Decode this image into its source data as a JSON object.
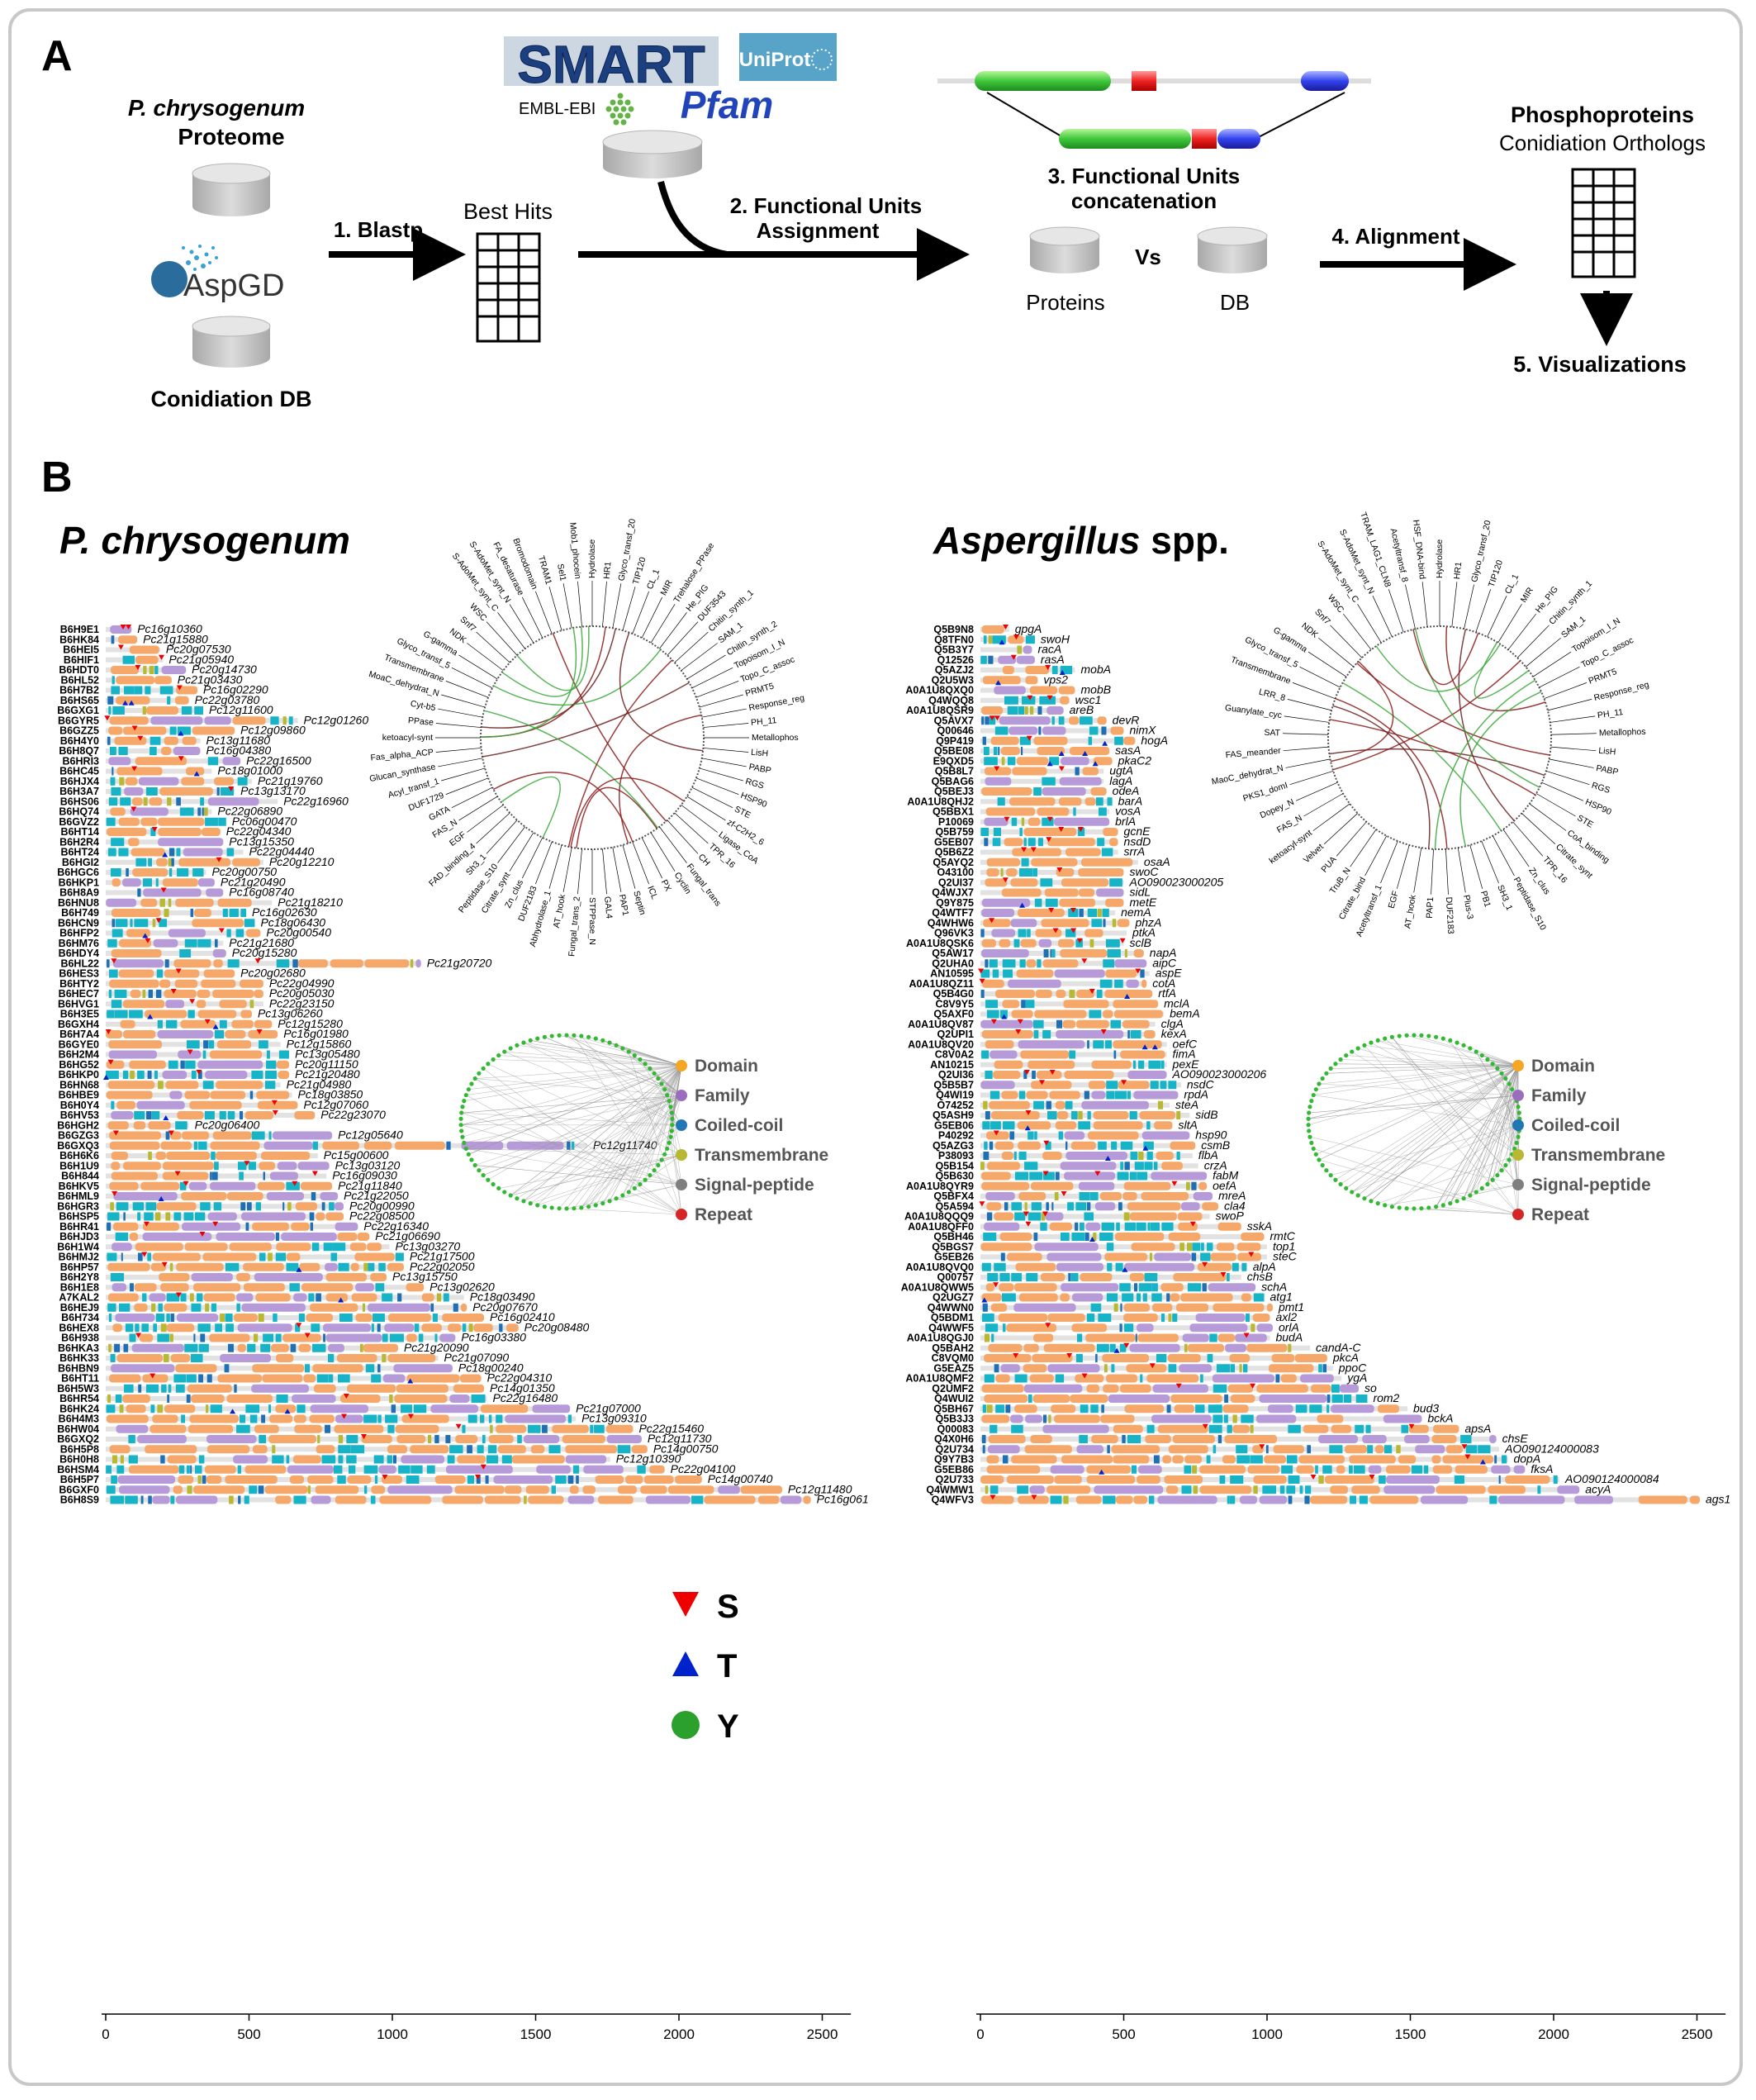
{
  "panel_a": {
    "letter": "A",
    "species": "P. chrysogenum",
    "proteome": "Proteome",
    "aspgd": "AspGD",
    "conidiation_db": "Conidiation DB",
    "step1": "1. Blastp",
    "best_hits": "Best Hits",
    "smart": "SMART",
    "uniprot": "UniProt",
    "embl": "EMBL-EBI",
    "pfam": "Pfam",
    "step2_line1": "2. Functional Units",
    "step2_line2": "Assignment",
    "step3_line1": "3. Functional Units",
    "step3_line2": "concatenation",
    "proteins": "Proteins",
    "vs": "Vs",
    "db": "DB",
    "step4": "4. Alignment",
    "phospho": "Phosphoproteins",
    "cond_orth": "Conidiation Orthologs",
    "step5": "5. Visualizations"
  },
  "panel_b": {
    "letter": "B",
    "left_title": "P. chrysogenum",
    "right_title_italic": "Aspergillus",
    "right_title_rest": " spp.",
    "left_ids": [
      "B6H9E1",
      "B6HK84",
      "B6HEI5",
      "B6HIF1",
      "B6HDT0",
      "B6HL52",
      "B6H7B2",
      "B6HS65",
      "B6GXG1",
      "B6GYR5",
      "B6GZZ5",
      "B6H4Y0",
      "B6H8Q7",
      "B6HRI3",
      "B6HC45",
      "B6HJX4",
      "B6H3A7",
      "B6HS06",
      "B6HQ74",
      "B6GVZ2",
      "B6HT14",
      "B6H2R4",
      "B6HT24",
      "B6HGI2",
      "B6HGC6",
      "B6HKP1",
      "B6H8A9",
      "B6HNU8",
      "B6H749",
      "B6HCN9",
      "B6HFP2",
      "B6HM76",
      "B6HDY4",
      "B6HL22",
      "B6HES3",
      "B6HTY2",
      "B6HEC7",
      "B6HVG1",
      "B6H3E5",
      "B6GXH4",
      "B6H7A4",
      "B6GYE0",
      "B6H2M4",
      "B6HG52",
      "B6HKP0",
      "B6HN68",
      "B6HBE9",
      "B6H0Y4",
      "B6HV53",
      "B6HGH2",
      "B6GZG3",
      "B6GXQ3",
      "B6H6K6",
      "B6H1U9",
      "B6H844",
      "B6HKV5",
      "B6HML9",
      "B6HGR3",
      "B6HSP5",
      "B6HR41",
      "B6HJD3",
      "B6H1W4",
      "B6HMJ2",
      "B6HP57",
      "B6H2Y8",
      "B6H1E8",
      "A7KAL2",
      "B6HEJ9",
      "B6H734",
      "B6HEX8",
      "B6H938",
      "B6HKA3",
      "B6HK33",
      "B6HBN9",
      "B6HT11",
      "B6H5W3",
      "B6HR54",
      "B6HK24",
      "B6H4M3",
      "B6HW04",
      "B6GXQ2",
      "B6H5P8",
      "B6H0H8",
      "B6HSM4",
      "B6H5P7",
      "B6GXF0",
      "B6H8S9"
    ],
    "left_genes": [
      "Pc16g10360",
      "Pc21g15880",
      "Pc20g07530",
      "Pc21g05940",
      "Pc20g14730",
      "Pc21g03430",
      "Pc16g02290",
      "Pc22g03780",
      "Pc12g11600",
      "Pc12g01260",
      "Pc12g09860",
      "Pc13g11680",
      "Pc16g04380",
      "Pc22g16500",
      "Pc18g01000",
      "Pc21g19760",
      "Pc13g13170",
      "Pc22g16960",
      "Pc22g06890",
      "Pc06g00470",
      "Pc22g04340",
      "Pc13g15350",
      "Pc22g04440",
      "Pc20g12210",
      "Pc20g00750",
      "Pc21g20490",
      "Pc16g08740",
      "Pc21g18210",
      "Pc16g02630",
      "Pc18g06430",
      "Pc20g00540",
      "Pc21g21680",
      "Pc20g15280",
      "Pc21g20720",
      "Pc20g02680",
      "Pc22g04990",
      "Pc20g05030",
      "Pc22g23150",
      "Pc13g06260",
      "Pc12g15280",
      "Pc16g01980",
      "Pc12g15860",
      "Pc13g05480",
      "Pc20g11150",
      "Pc21g20480",
      "Pc21g04980",
      "Pc18g03850",
      "Pc12g07060",
      "Pc22g23070",
      "Pc20g06400",
      "Pc12g05640",
      "Pc12g11740",
      "Pc15g00600",
      "Pc13g03120",
      "Pc16g09030",
      "Pc21g11840",
      "Pc21g22050",
      "Pc20g00990",
      "Pc22g08500",
      "Pc22g16340",
      "Pc21g06690",
      "Pc13g03270",
      "Pc21g17500",
      "Pc22g02050",
      "Pc13g15750",
      "Pc13g02620",
      "Pc18g03490",
      "Pc20g07670",
      "Pc16g02410",
      "Pc20g08480",
      "Pc16g03380",
      "Pc21g20090",
      "Pc21g07090",
      "Pc18g00240",
      "Pc22g04310",
      "Pc14g01350",
      "Pc22g16480",
      "Pc21g07000",
      "Pc13g09310",
      "Pc22g15460",
      "Pc12g11730",
      "Pc14g00750",
      "Pc12g10390",
      "Pc22g04100",
      "Pc14g00740",
      "Pc12g11480",
      "Pc16g061"
    ],
    "right_ids": [
      "Q5B9N8",
      "Q8TFN0",
      "Q5B3Y7",
      "Q12526",
      "Q5AZJ2",
      "Q2U5W3",
      "A0A1U8QXQ0",
      "Q4WQQ8",
      "A0A1U8QSR9",
      "Q5AVX7",
      "Q00646",
      "Q9P419",
      "Q5BE08",
      "E9QXD5",
      "Q5B8L7",
      "Q5BAG6",
      "Q5BEJ3",
      "A0A1U8QHJ2",
      "Q5BBX1",
      "P10069",
      "Q5B759",
      "G5EB07",
      "Q5B6Z2",
      "Q5AYQ2",
      "O43100",
      "Q2UI37",
      "Q4WJX7",
      "Q9Y875",
      "Q4WTF7",
      "Q4WHW6",
      "Q96VK3",
      "A0A1U8QSK6",
      "Q5AW17",
      "Q2UHA0",
      "AN10595",
      "A0A1U8QZ11",
      "Q5B4G0",
      "C8V9Y5",
      "Q5AXF0",
      "A0A1U8QV87",
      "Q2UPI1",
      "A0A1U8QV20",
      "C8V0A2",
      "AN10215",
      "Q2UI36",
      "Q5B5B7",
      "Q4WI19",
      "O74252",
      "Q5ASH9",
      "G5EB06",
      "P40292",
      "Q5AZG3",
      "P38093",
      "Q5B154",
      "Q5B630",
      "A0A1U8QYR9",
      "Q5BFX4",
      "Q5A594",
      "A0A1U8QQQ9",
      "A0A1U8QFF0",
      "Q5BH46",
      "Q5BGS7",
      "G5EB26",
      "A0A1U8QVQ0",
      "Q00757",
      "A0A1U8QWW5",
      "Q2UGZ7",
      "Q4WWN0",
      "Q5BDM1",
      "Q4WWF5",
      "A0A1U8QGJ0",
      "Q5BAH2",
      "C8VQM0",
      "G5EAZ5",
      "A0A1U8QMF2",
      "Q2UMF2",
      "Q4WUI2",
      "Q5BH67",
      "Q5B3J3",
      "Q00083",
      "Q4X0H6",
      "Q2U734",
      "Q9Y7B3",
      "G5EB86",
      "Q2U733",
      "Q4WMW1",
      "Q4WFV3"
    ],
    "right_genes": [
      "gpgA",
      "swoH",
      "racA",
      "rasA",
      "mobA",
      "vps2",
      "mobB",
      "wsc1",
      "areB",
      "devR",
      "nimX",
      "hogA",
      "sasA",
      "pkaC2",
      "ugtA",
      "lagA",
      "odeA",
      "barA",
      "vosA",
      "brlA",
      "gcnE",
      "nsdD",
      "srrA",
      "osaA",
      "swoC",
      "AO090023000205",
      "sidL",
      "metE",
      "nemA",
      "phzA",
      "ptkA",
      "sclB",
      "napA",
      "aipC",
      "aspE",
      "cotA",
      "rtfA",
      "mclA",
      "bemA",
      "clgA",
      "kexA",
      "oefC",
      "fimA",
      "pexE",
      "AO090023000206",
      "nsdC",
      "rpdA",
      "steA",
      "sidB",
      "sltA",
      "hsp90",
      "csmB",
      "flbA",
      "crzA",
      "fabM",
      "oefA",
      "mreA",
      "cla4",
      "swoP",
      "sskA",
      "rmtC",
      "top1",
      "steC",
      "alpA",
      "chsB",
      "schA",
      "atg1",
      "pmt1",
      "axl2",
      "orlA",
      "budA",
      "candA-C",
      "pkcA",
      "ppoC",
      "ygA",
      "so",
      "rom2",
      "bud3",
      "bckA",
      "apsA",
      "chsE",
      "AO090124000083",
      "dopA",
      "fksA",
      "AO090124000084",
      "acyA",
      "ags1"
    ],
    "x_ticks": [
      "0",
      "500",
      "1000",
      "1500",
      "2000",
      "2500"
    ],
    "left_circos_labels": [
      "Hydrolase",
      "HR1",
      "Glyco_transf_20",
      "TIP120",
      "CL_1",
      "MIR",
      "Trehalose_PPase",
      "He_PIG",
      "DUF3543",
      "Chitin_synth_1",
      "SAM_1",
      "Chitin_synth_2",
      "Topoisom_I_N",
      "Topo_C_assoc",
      "PRMT5",
      "Response_reg",
      "PH_11",
      "Metallophos",
      "LisH",
      "PABP",
      "RGS",
      "HSP90",
      "STE",
      "zf-C2H2_6",
      "Ligase_CoA",
      "TPR_16",
      "CH",
      "Fungal_trans",
      "Cyclin",
      "PX",
      "ICL",
      "Septin",
      "PAP1",
      "GAL4",
      "STPPase_N",
      "Fungal_trans_2",
      "AT_hook",
      "Abhydrolase_1",
      "DUF2183",
      "Zn_clus",
      "Citrate_synt",
      "Peptidase_S10",
      "Sh3_1",
      "FAD_binding_4",
      "EGF",
      "FAS_N",
      "GATA",
      "DUF1729",
      "Acyl_transf_1",
      "Glucan_synthase",
      "Fas_alpha_ACP",
      "ketoacyl-synt",
      "PPase",
      "Cyt-b5",
      "MoaC_dehydrat_N",
      "Transmembrane",
      "Glyco_transf_5",
      "G-gamma",
      "NDK",
      "Snf7",
      "WSC",
      "S-AdoMet_synt_C",
      "S-AdoMet_synt_N",
      "FA_desaturase",
      "Bromodomain",
      "TRAM1",
      "Sel1",
      "Mob1_phocein"
    ],
    "right_circos_labels": [
      "Hydrolase",
      "HR1",
      "Glyco_transf_20",
      "TIP120",
      "CL_1",
      "MIR",
      "He_PIG",
      "Chitin_synth_1",
      "SAM_1",
      "Topoisom_I_N",
      "Topo_C_assoc",
      "PRMT5",
      "Response_reg",
      "PH_11",
      "Metallophos",
      "LisH",
      "PABP",
      "RGS",
      "HSP90",
      "STE",
      "CoA_binding",
      "Citrate_synt",
      "TPR_16",
      "Zn_clus",
      "Peptidase_S10",
      "SH3_1",
      "PB1",
      "Plus-3",
      "DUF2183",
      "PAP1",
      "AT_hook",
      "EGF",
      "Acetyltransf_1",
      "Citrate_bind",
      "TruB_N",
      "PUA",
      "Velvet",
      "ketoacyl-synt",
      "FAS_N",
      "Dopey_N",
      "PKS1_domI",
      "MaoC_dehydrat_N",
      "FAS_meander",
      "SAT",
      "Guanylate_cyc",
      "LRR_8",
      "Transmembrane",
      "Glyco_transf_5",
      "G-gamma",
      "NDK",
      "Snf7",
      "WSC",
      "S-AdoMet_synt_C",
      "S-AdoMet_synt_N",
      "TRAM_LAG1_CLN8",
      "Acetyltransf_8",
      "HSF_DNA-bind"
    ],
    "legend_labels": [
      "Domain",
      "Family",
      "Coiled-coil",
      "Transmembrane",
      "Signal-peptide",
      "Repeat"
    ],
    "legend_colors": [
      "#f5a623",
      "#9b6dbf",
      "#1f77b4",
      "#b8b832",
      "#7f7f7f",
      "#d62728"
    ],
    "phospho_labels": [
      "S",
      "T",
      "Y"
    ],
    "phospho_colors": [
      "#ee0000",
      "#0022cc",
      "#2ca02c"
    ],
    "domain_colors": {
      "backbone": "#e2e2e2",
      "domain": "#f5a86a",
      "family": "#b79ad8",
      "coiled": "#17b3c7",
      "dark": "#1f6fb4",
      "tm": "#b8b832",
      "repeat": "#d9534f",
      "signal": "#888888"
    }
  }
}
